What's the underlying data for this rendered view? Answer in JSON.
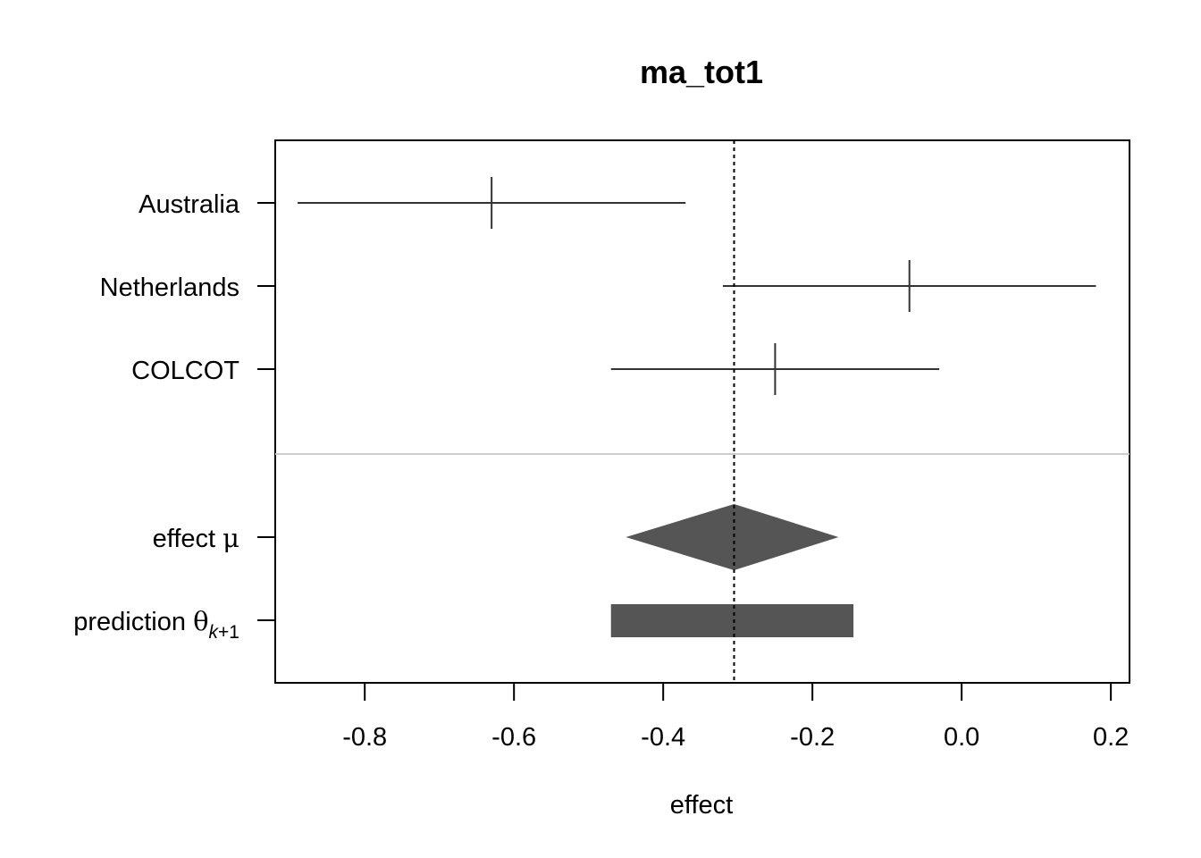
{
  "chart_data": {
    "type": "forest",
    "title": "ma_tot1",
    "xlabel": "effect",
    "xlim": [
      -0.92,
      0.225
    ],
    "xticks": [
      -0.8,
      -0.6,
      -0.4,
      -0.2,
      0.0,
      0.2
    ],
    "xtick_labels": [
      "-0.8",
      "-0.6",
      "-0.4",
      "-0.2",
      "0.0",
      "0.2"
    ],
    "studies": [
      {
        "label": "Australia",
        "estimate": -0.63,
        "lower": -0.89,
        "upper": -0.37
      },
      {
        "label": "Netherlands",
        "estimate": -0.07,
        "lower": -0.32,
        "upper": 0.18
      },
      {
        "label": "COLCOT",
        "estimate": -0.25,
        "lower": -0.47,
        "upper": -0.03
      }
    ],
    "summary": {
      "effect": {
        "label": "effect",
        "symbol": "μ",
        "estimate": -0.305,
        "lower": -0.45,
        "upper": -0.165
      },
      "prediction": {
        "label": "prediction",
        "symbol": "θ",
        "subscript_italic": "k",
        "subscript_rest": "+1",
        "lower": -0.47,
        "upper": -0.145
      }
    },
    "reference_line": -0.305,
    "colors": {
      "summary_fill": "#555555",
      "separator": "#cccccc",
      "interval": "#333333",
      "axis": "#000000"
    }
  }
}
